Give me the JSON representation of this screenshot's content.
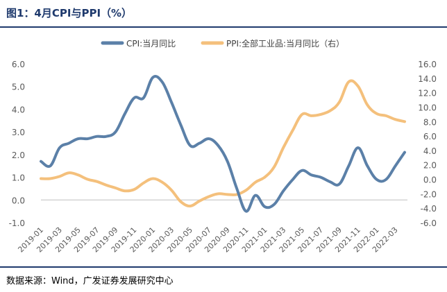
{
  "title": "图1：4月CPI与PPI（%）",
  "source": "数据来源：Wind，广发证券发展研究中心",
  "colors": {
    "cpi": "#5b80a8",
    "ppi": "#f4c07c",
    "axis": "#595959",
    "brand": "#1f3a6d"
  },
  "chart_data": {
    "type": "line",
    "title": "图1：4月CPI与PPI（%）",
    "legend": [
      "CPI:当月同比",
      "PPI:全部工业品:当月同比（右）"
    ],
    "legend_position": "top-center",
    "grid": false,
    "x_tick_labels": [
      "2019-01",
      "2019-03",
      "2019-05",
      "2019-07",
      "2019-09",
      "2019-11",
      "2020-01",
      "2020-03",
      "2020-05",
      "2020-07",
      "2020-09",
      "2020-11",
      "2021-01",
      "2021-03",
      "2021-05",
      "2021-07",
      "2021-09",
      "2021-11",
      "2022-01",
      "2022-03"
    ],
    "y_left": {
      "label": "",
      "ylim": [
        -1,
        6
      ],
      "ticks": [
        "-1.0",
        "0.0",
        "1.0",
        "2.0",
        "3.0",
        "4.0",
        "5.0",
        "6.0"
      ]
    },
    "y_right": {
      "label": "",
      "ylim": [
        -6,
        16
      ],
      "ticks": [
        "-6.0",
        "-4.0",
        "-2.0",
        "0.0",
        "2.0",
        "4.0",
        "6.0",
        "8.0",
        "10.0",
        "12.0",
        "14.0",
        "16.0"
      ]
    },
    "series": [
      {
        "name": "CPI:当月同比",
        "axis": "left",
        "x": [
          "2019-01",
          "2019-02",
          "2019-03",
          "2019-04",
          "2019-05",
          "2019-06",
          "2019-07",
          "2019-08",
          "2019-09",
          "2019-10",
          "2019-11",
          "2019-12",
          "2020-01",
          "2020-02",
          "2020-03",
          "2020-04",
          "2020-05",
          "2020-06",
          "2020-07",
          "2020-08",
          "2020-09",
          "2020-10",
          "2020-11",
          "2020-12",
          "2021-01",
          "2021-02",
          "2021-03",
          "2021-04",
          "2021-05",
          "2021-06",
          "2021-07",
          "2021-08",
          "2021-09",
          "2021-10",
          "2021-11",
          "2021-12",
          "2022-01",
          "2022-02",
          "2022-03",
          "2022-04"
        ],
        "values": [
          1.7,
          1.5,
          2.3,
          2.5,
          2.7,
          2.7,
          2.8,
          2.8,
          3.0,
          3.8,
          4.5,
          4.5,
          5.4,
          5.2,
          4.3,
          3.3,
          2.4,
          2.5,
          2.7,
          2.4,
          1.7,
          0.5,
          -0.5,
          0.2,
          -0.3,
          -0.2,
          0.4,
          0.9,
          1.3,
          1.1,
          1.0,
          0.8,
          0.7,
          1.5,
          2.3,
          1.5,
          0.9,
          0.9,
          1.5,
          2.1
        ]
      },
      {
        "name": "PPI:全部工业品:当月同比（右）",
        "axis": "right",
        "x": [
          "2019-01",
          "2019-02",
          "2019-03",
          "2019-04",
          "2019-05",
          "2019-06",
          "2019-07",
          "2019-08",
          "2019-09",
          "2019-10",
          "2019-11",
          "2019-12",
          "2020-01",
          "2020-02",
          "2020-03",
          "2020-04",
          "2020-05",
          "2020-06",
          "2020-07",
          "2020-08",
          "2020-09",
          "2020-10",
          "2020-11",
          "2020-12",
          "2021-01",
          "2021-02",
          "2021-03",
          "2021-04",
          "2021-05",
          "2021-06",
          "2021-07",
          "2021-08",
          "2021-09",
          "2021-10",
          "2021-11",
          "2021-12",
          "2022-01",
          "2022-02",
          "2022-03",
          "2022-04"
        ],
        "values": [
          0.1,
          0.1,
          0.4,
          0.9,
          0.6,
          0.0,
          -0.3,
          -0.8,
          -1.2,
          -1.6,
          -1.4,
          -0.5,
          0.1,
          -0.4,
          -1.5,
          -3.1,
          -3.7,
          -3.0,
          -2.4,
          -2.0,
          -2.1,
          -2.1,
          -1.5,
          -0.4,
          0.3,
          1.7,
          4.4,
          6.8,
          9.0,
          8.8,
          9.0,
          9.5,
          10.7,
          13.5,
          12.9,
          10.3,
          9.1,
          8.8,
          8.3,
          8.0
        ]
      }
    ]
  }
}
